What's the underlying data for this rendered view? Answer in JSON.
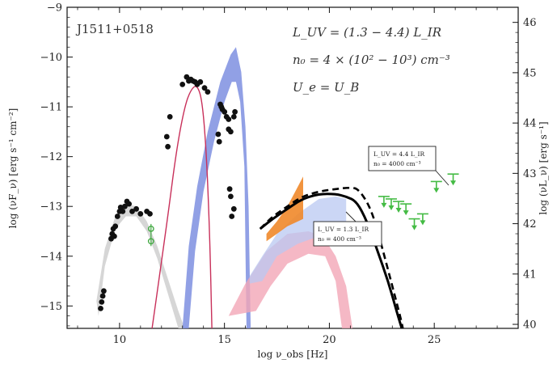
{
  "chart_data": {
    "type": "scatter",
    "title": "J1511+0518",
    "xlabel": "log ν_obs [Hz]",
    "ylabel": "log (νF_ν) [erg s⁻¹ cm⁻²]",
    "ylabel_right": "log (νL_ν) [erg s⁻¹]",
    "xlim": [
      7.5,
      29.0
    ],
    "ylim": [
      -15.45,
      -9.0
    ],
    "ylim_right": [
      39.92,
      46.3
    ],
    "x_ticks": [
      "10",
      "15",
      "20",
      "25"
    ],
    "y_ticks": [
      "−15",
      "−14",
      "−13",
      "−12",
      "−11",
      "−10",
      "−9"
    ],
    "y_ticks_right": [
      "40",
      "41",
      "42",
      "43",
      "44",
      "45",
      "46"
    ],
    "annotations": [
      "L_UV = (1.3 − 4.4) L_IR",
      "n₀ = 4 × (10² − 10³) cm⁻³",
      "U_e = U_B"
    ],
    "callouts": {
      "upper": [
        "L_UV = 4.4 L_IR",
        "n₀ = 4000 cm⁻³"
      ],
      "lower": [
        "L_UV = 1.3 L_IR",
        "n₀ = 400 cm⁻³"
      ]
    },
    "colors": {
      "data_points": "#111111",
      "radio_limits": "#44aa44",
      "ir_model_band": "#d4d4d4",
      "synchrotron_curve": "#c8305a",
      "blue_band": "#7e8fe0",
      "pink_band": "#f2a6b6",
      "light_blue_band": "#b9c8f2",
      "xray_bowtie": "#f0882a",
      "model_solid": "#000000",
      "model_dashed": "#000000",
      "gamma_upper_limits": "#44bb44"
    },
    "series": [
      {
        "type": "scatter",
        "points": [
          [
            9.1,
            -15.05
          ],
          [
            9.15,
            -14.92
          ],
          [
            9.2,
            -14.8
          ],
          [
            9.25,
            -14.7
          ],
          [
            9.6,
            -13.65
          ],
          [
            9.65,
            -13.55
          ],
          [
            9.7,
            -13.45
          ],
          [
            9.75,
            -13.6
          ],
          [
            9.8,
            -13.4
          ],
          [
            9.9,
            -13.2
          ],
          [
            10.0,
            -13.1
          ],
          [
            10.05,
            -13.02
          ],
          [
            10.15,
            -13.1
          ],
          [
            10.25,
            -13.0
          ],
          [
            10.35,
            -12.9
          ],
          [
            10.45,
            -12.95
          ],
          [
            10.6,
            -13.1
          ],
          [
            10.8,
            -13.05
          ],
          [
            11.0,
            -13.15
          ],
          [
            11.3,
            -13.1
          ],
          [
            11.45,
            -13.15
          ],
          [
            12.25,
            -11.6
          ],
          [
            12.3,
            -11.8
          ],
          [
            12.4,
            -11.2
          ],
          [
            13.0,
            -10.55
          ],
          [
            13.2,
            -10.4
          ],
          [
            13.3,
            -10.48
          ],
          [
            13.4,
            -10.45
          ],
          [
            13.5,
            -10.48
          ],
          [
            13.6,
            -10.5
          ],
          [
            13.7,
            -10.55
          ],
          [
            13.85,
            -10.5
          ],
          [
            14.05,
            -10.62
          ],
          [
            14.2,
            -10.7
          ],
          [
            14.8,
            -10.95
          ],
          [
            14.85,
            -11.0
          ],
          [
            14.9,
            -11.05
          ],
          [
            15.0,
            -11.1
          ],
          [
            15.1,
            -11.2
          ],
          [
            15.2,
            -11.25
          ],
          [
            15.3,
            -11.5
          ],
          [
            15.45,
            -11.2
          ],
          [
            15.5,
            -11.1
          ],
          [
            14.7,
            -11.55
          ],
          [
            14.75,
            -11.7
          ],
          [
            15.2,
            -11.45
          ],
          [
            15.25,
            -12.65
          ],
          [
            15.3,
            -12.8
          ],
          [
            15.35,
            -13.2
          ],
          [
            15.45,
            -13.05
          ]
        ]
      },
      {
        "type": "radio-limits",
        "points": [
          [
            11.5,
            -13.45
          ],
          [
            11.5,
            -13.7
          ]
        ]
      },
      {
        "type": "ir-model-band",
        "upper": [
          [
            8.9,
            -14.9
          ],
          [
            9.3,
            -13.85
          ],
          [
            9.8,
            -13.2
          ],
          [
            10.3,
            -12.95
          ],
          [
            10.8,
            -13.0
          ],
          [
            11.3,
            -13.3
          ],
          [
            11.8,
            -13.8
          ],
          [
            12.3,
            -14.45
          ],
          [
            12.8,
            -15.1
          ],
          [
            13.1,
            -15.45
          ]
        ],
        "lower": [
          [
            9.0,
            -15.2
          ],
          [
            9.3,
            -14.2
          ],
          [
            9.8,
            -13.45
          ],
          [
            10.3,
            -13.2
          ],
          [
            10.8,
            -13.2
          ],
          [
            11.3,
            -13.5
          ],
          [
            11.8,
            -14.05
          ],
          [
            12.3,
            -14.75
          ],
          [
            12.8,
            -15.45
          ]
        ]
      },
      {
        "type": "synchrotron-curve",
        "points": [
          [
            11.55,
            -15.45
          ],
          [
            11.9,
            -14.4
          ],
          [
            12.3,
            -13.2
          ],
          [
            12.7,
            -11.9
          ],
          [
            13.1,
            -11.0
          ],
          [
            13.4,
            -10.65
          ],
          [
            13.7,
            -10.55
          ],
          [
            13.95,
            -10.9
          ],
          [
            14.15,
            -12.0
          ],
          [
            14.3,
            -13.6
          ],
          [
            14.4,
            -15.45
          ]
        ]
      },
      {
        "type": "blue-band",
        "upper": [
          [
            13.0,
            -15.45
          ],
          [
            13.3,
            -13.8
          ],
          [
            13.7,
            -12.6
          ],
          [
            14.2,
            -11.5
          ],
          [
            14.8,
            -10.5
          ],
          [
            15.3,
            -9.95
          ],
          [
            15.55,
            -9.8
          ],
          [
            15.8,
            -10.3
          ],
          [
            16.0,
            -11.4
          ],
          [
            16.15,
            -13.0
          ],
          [
            16.25,
            -15.45
          ]
        ],
        "lower": [
          [
            13.3,
            -15.45
          ],
          [
            13.6,
            -13.9
          ],
          [
            14.0,
            -12.7
          ],
          [
            14.5,
            -11.7
          ],
          [
            15.0,
            -10.9
          ],
          [
            15.35,
            -10.5
          ],
          [
            15.55,
            -10.5
          ],
          [
            15.75,
            -10.9
          ],
          [
            15.95,
            -12.2
          ],
          [
            16.05,
            -15.45
          ]
        ]
      },
      {
        "type": "pink-band",
        "upper": [
          [
            15.2,
            -15.2
          ],
          [
            16.0,
            -14.55
          ],
          [
            17.0,
            -13.9
          ],
          [
            18.0,
            -13.55
          ],
          [
            19.0,
            -13.5
          ],
          [
            19.7,
            -13.6
          ],
          [
            20.3,
            -14.0
          ],
          [
            20.8,
            -14.6
          ],
          [
            21.1,
            -15.45
          ]
        ],
        "lower": [
          [
            16.5,
            -15.1
          ],
          [
            17.2,
            -14.6
          ],
          [
            18.0,
            -14.15
          ],
          [
            19.0,
            -13.95
          ],
          [
            19.8,
            -14.0
          ],
          [
            20.3,
            -14.5
          ],
          [
            20.6,
            -15.45
          ]
        ]
      },
      {
        "type": "light-blue-band",
        "upper": [
          [
            16.2,
            -14.4
          ],
          [
            16.8,
            -14.0
          ],
          [
            17.5,
            -13.55
          ],
          [
            18.5,
            -13.15
          ],
          [
            19.5,
            -12.85
          ],
          [
            20.3,
            -12.8
          ],
          [
            20.8,
            -12.85
          ]
        ],
        "lower": [
          [
            16.2,
            -14.55
          ],
          [
            16.8,
            -14.5
          ],
          [
            17.5,
            -14.0
          ],
          [
            18.5,
            -13.75
          ],
          [
            19.5,
            -13.6
          ],
          [
            20.3,
            -13.6
          ],
          [
            20.8,
            -13.65
          ]
        ]
      },
      {
        "type": "xray-bowtie",
        "upper": [
          [
            17.0,
            -13.55
          ],
          [
            17.5,
            -13.3
          ],
          [
            18.0,
            -13.0
          ],
          [
            18.5,
            -12.6
          ],
          [
            18.75,
            -12.4
          ]
        ],
        "lower": [
          [
            17.0,
            -13.7
          ],
          [
            17.5,
            -13.55
          ],
          [
            18.0,
            -13.4
          ],
          [
            18.5,
            -13.3
          ],
          [
            18.75,
            -13.25
          ]
        ]
      },
      {
        "type": "model-solid",
        "points": [
          [
            16.7,
            -13.45
          ],
          [
            17.3,
            -13.25
          ],
          [
            18.0,
            -13.05
          ],
          [
            18.7,
            -12.85
          ],
          [
            19.5,
            -12.75
          ],
          [
            20.3,
            -12.75
          ],
          [
            20.8,
            -12.8
          ],
          [
            21.3,
            -12.9
          ],
          [
            21.8,
            -13.3
          ],
          [
            22.3,
            -13.9
          ],
          [
            22.8,
            -14.5
          ],
          [
            23.2,
            -15.1
          ],
          [
            23.45,
            -15.45
          ]
        ]
      },
      {
        "type": "model-dashed",
        "points": [
          [
            16.7,
            -13.45
          ],
          [
            17.3,
            -13.2
          ],
          [
            18.0,
            -13.0
          ],
          [
            18.7,
            -12.8
          ],
          [
            19.5,
            -12.7
          ],
          [
            20.3,
            -12.65
          ],
          [
            21.0,
            -12.62
          ],
          [
            21.4,
            -12.65
          ],
          [
            22.0,
            -13.05
          ],
          [
            22.5,
            -13.8
          ],
          [
            23.0,
            -14.6
          ],
          [
            23.4,
            -15.25
          ],
          [
            23.5,
            -15.45
          ]
        ]
      },
      {
        "type": "gamma-upper-limits",
        "points": [
          [
            22.6,
            -12.8
          ],
          [
            22.95,
            -12.85
          ],
          [
            23.3,
            -12.9
          ],
          [
            23.65,
            -12.95
          ],
          [
            24.05,
            -13.25
          ],
          [
            24.45,
            -13.15
          ],
          [
            25.1,
            -12.5
          ],
          [
            25.9,
            -12.35
          ]
        ]
      }
    ]
  }
}
